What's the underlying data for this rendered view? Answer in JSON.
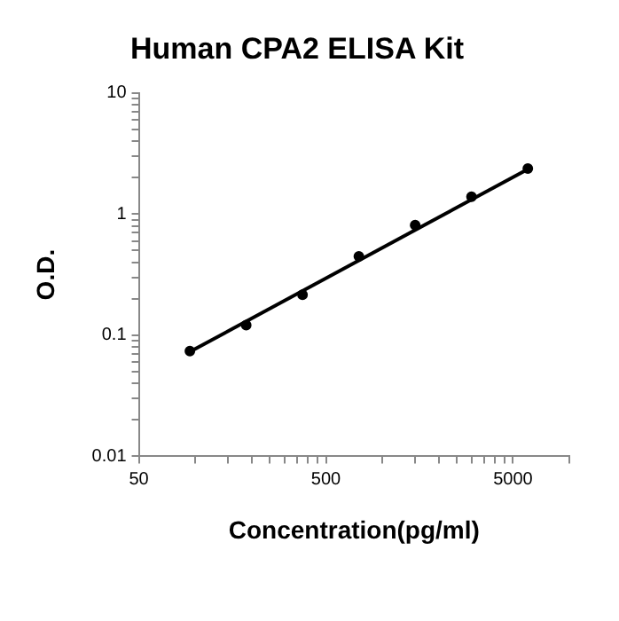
{
  "chart_data": {
    "type": "scatter",
    "title": "Human CPA2 ELISA Kit",
    "xlabel": "Concentration(pg/ml)",
    "ylabel": "O.D.",
    "log": "xy",
    "grid": false,
    "legend": false,
    "xlim": [
      50,
      10000
    ],
    "xticks": [
      50,
      {
        "value": 100,
        "label": null
      },
      {
        "value": 150,
        "label": null
      },
      {
        "value": 200,
        "label": null
      },
      {
        "value": 250,
        "label": null
      },
      {
        "value": 300,
        "label": null
      },
      {
        "value": 350,
        "label": null
      },
      {
        "value": 400,
        "label": null
      },
      {
        "value": 450,
        "label": null
      },
      500,
      {
        "value": 1000,
        "label": null
      },
      {
        "value": 1500,
        "label": null
      },
      {
        "value": 2000,
        "label": null
      },
      {
        "value": 2500,
        "label": null
      },
      {
        "value": 3000,
        "label": null
      },
      {
        "value": 3500,
        "label": null
      },
      {
        "value": 4000,
        "label": null
      },
      {
        "value": 4500,
        "label": null
      },
      5000,
      {
        "value": 10000,
        "label": null
      }
    ],
    "ylim": [
      0.01,
      10
    ],
    "yticks": [
      0.01,
      {
        "value": 0.02,
        "label": null
      },
      {
        "value": 0.03,
        "label": null
      },
      {
        "value": 0.04,
        "label": null
      },
      {
        "value": 0.05,
        "label": null
      },
      {
        "value": 0.06,
        "label": null
      },
      {
        "value": 0.07,
        "label": null
      },
      {
        "value": 0.08,
        "label": null
      },
      {
        "value": 0.09,
        "label": null
      },
      0.1,
      {
        "value": 0.2,
        "label": null
      },
      {
        "value": 0.3,
        "label": null
      },
      {
        "value": 0.4,
        "label": null
      },
      {
        "value": 0.5,
        "label": null
      },
      {
        "value": 0.6,
        "label": null
      },
      {
        "value": 0.7,
        "label": null
      },
      {
        "value": 0.8,
        "label": null
      },
      {
        "value": 0.9,
        "label": null
      },
      1,
      {
        "value": 2,
        "label": null
      },
      {
        "value": 3,
        "label": null
      },
      {
        "value": 4,
        "label": null
      },
      {
        "value": 5,
        "label": null
      },
      {
        "value": 6,
        "label": null
      },
      {
        "value": 7,
        "label": null
      },
      {
        "value": 8,
        "label": null
      },
      {
        "value": 9,
        "label": null
      },
      10
    ],
    "series": [
      {
        "color": "#000000",
        "marker": "circle",
        "x": [
          93.75,
          187.5,
          375,
          750,
          1500,
          3000,
          6000
        ],
        "values": [
          0.074,
          0.121,
          0.216,
          0.447,
          0.81,
          1.39,
          2.38
        ]
      },
      {
        "type": "line",
        "color": "#000000",
        "marker": "none",
        "line_style": "solid",
        "x": [
          93.75,
          6000
        ],
        "values": [
          0.073,
          2.35
        ]
      }
    ]
  }
}
